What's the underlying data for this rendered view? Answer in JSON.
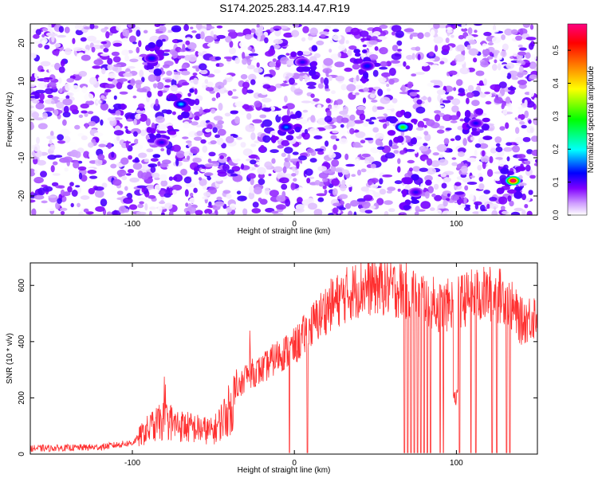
{
  "title": "S174.2025.283.14.47.R19",
  "chart_data": [
    {
      "type": "heatmap",
      "title": "S174.2025.283.14.47.R19",
      "xlabel": "Height of straight line (km)",
      "ylabel": "Frequency (Hz)",
      "xlim": [
        -163,
        150
      ],
      "ylim": [
        -25,
        25
      ],
      "xticks": [
        -100,
        0,
        100
      ],
      "yticks": [
        -20,
        -10,
        0,
        10,
        20
      ],
      "colorbar": {
        "label": "Normalized spectral amplitude",
        "range": [
          0,
          0.58
        ],
        "ticks": [
          0.0,
          0.1,
          0.2,
          0.3,
          0.4,
          0.5
        ],
        "tick_labels": [
          "0.0",
          "0.1",
          "0.2",
          "0.3",
          "0.4",
          "0.5"
        ],
        "colors": [
          "#ffffff",
          "#8000ff",
          "#0000ff",
          "#00ffff",
          "#00ff00",
          "#ffff00",
          "#ff8000",
          "#ff0000",
          "#ff0080"
        ]
      },
      "hotspots": [
        {
          "x": 135,
          "y": -16,
          "value": 0.58
        },
        {
          "x": 67,
          "y": -2,
          "value": 0.3
        },
        {
          "x": -70,
          "y": 4,
          "value": 0.2
        },
        {
          "x": -88,
          "y": 16,
          "value": 0.15
        },
        {
          "x": -5,
          "y": -2,
          "value": 0.18
        },
        {
          "x": 45,
          "y": 14,
          "value": 0.15
        },
        {
          "x": 112,
          "y": -1,
          "value": 0.13
        },
        {
          "x": 5,
          "y": 15,
          "value": 0.12
        },
        {
          "x": -82,
          "y": -6,
          "value": 0.12
        },
        {
          "x": 75,
          "y": -19,
          "value": 0.12
        }
      ]
    },
    {
      "type": "line",
      "xlabel": "Height of straight line (km)",
      "ylabel": "SNR (10 * v/v)",
      "xlim": [
        -163,
        150
      ],
      "ylim": [
        0,
        680
      ],
      "xticks": [
        -100,
        0,
        100
      ],
      "yticks": [
        0,
        200,
        400,
        600
      ],
      "color": "#ff3030",
      "series": [
        {
          "name": "SNR",
          "x": [
            -163,
            -140,
            -120,
            -100,
            -90,
            -80,
            -70,
            -60,
            -50,
            -40,
            -30,
            -20,
            -10,
            0,
            10,
            20,
            30,
            40,
            50,
            60,
            70,
            80,
            90,
            100,
            110,
            120,
            130,
            140,
            150
          ],
          "values": [
            20,
            22,
            25,
            40,
            90,
            120,
            100,
            90,
            80,
            160,
            280,
            300,
            350,
            380,
            450,
            520,
            560,
            590,
            600,
            590,
            580,
            560,
            520,
            540,
            560,
            570,
            560,
            470,
            500
          ]
        }
      ],
      "dropouts_x": [
        -3,
        8,
        68,
        70,
        72,
        74,
        76,
        78,
        80,
        82,
        84,
        90,
        92,
        102,
        109,
        112,
        122,
        125,
        131,
        133
      ]
    }
  ]
}
